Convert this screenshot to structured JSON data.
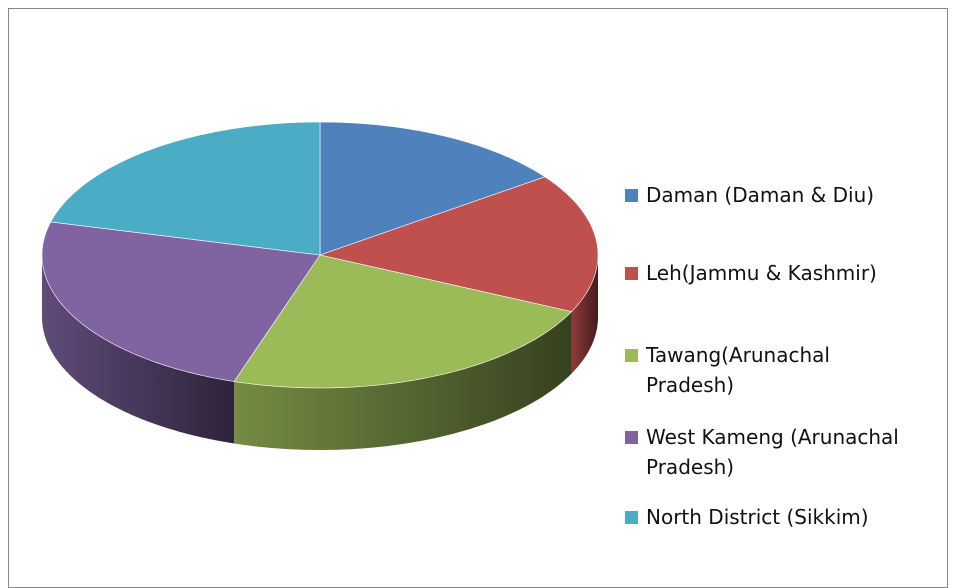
{
  "chart_data": {
    "type": "pie3d",
    "categories": [
      "Daman (Daman & Diu)",
      "Leh(Jammu & Kashmir)",
      "Tawang(Arunachal Pradesh)",
      "West Kameng (Arunachal Pradesh)",
      "North District (Sikkim)"
    ],
    "values": [
      15,
      17,
      23,
      24,
      21
    ],
    "colors": [
      "#4f81bd",
      "#c0504d",
      "#9bbb59",
      "#8064a2",
      "#4bacc6"
    ],
    "legend": "right"
  }
}
